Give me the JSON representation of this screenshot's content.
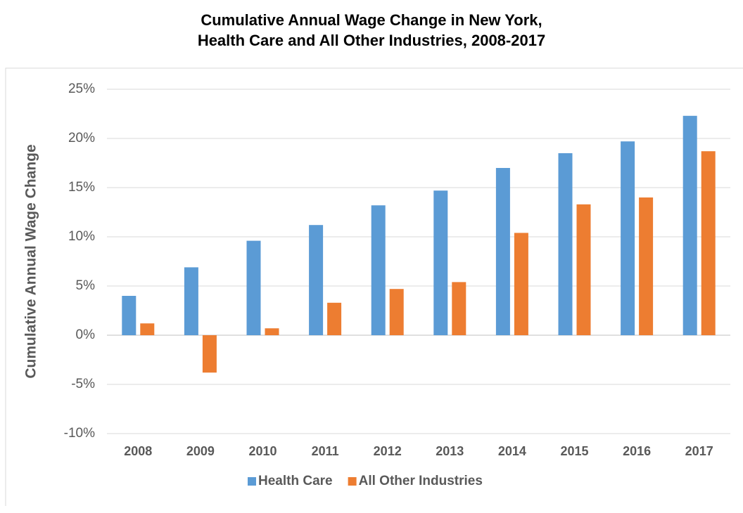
{
  "chart_data": {
    "type": "bar",
    "title": [
      "Cumulative Annual Wage Change in New York,",
      "Health Care and All Other Industries, 2008-2017"
    ],
    "y_label": "Cumulative Annual Wage Change",
    "categories": [
      "2008",
      "2009",
      "2010",
      "2011",
      "2012",
      "2013",
      "2014",
      "2015",
      "2016",
      "2017"
    ],
    "series": [
      {
        "name": "Health Care",
        "color": "#5b9bd5",
        "values": [
          4.0,
          6.9,
          9.6,
          11.2,
          13.2,
          14.7,
          17.0,
          18.5,
          19.7,
          22.3
        ]
      },
      {
        "name": "All Other Industries",
        "color": "#ed7d31",
        "values": [
          1.2,
          -3.8,
          0.7,
          3.3,
          4.7,
          5.4,
          10.4,
          13.3,
          14.0,
          18.7
        ]
      }
    ],
    "ylim": [
      -10,
      25
    ],
    "yticks": [
      {
        "value": -10,
        "label": "-10%"
      },
      {
        "value": -5,
        "label": "-5%"
      },
      {
        "value": 0,
        "label": "0%"
      },
      {
        "value": 5,
        "label": "5%"
      },
      {
        "value": 10,
        "label": "10%"
      },
      {
        "value": 15,
        "label": "15%"
      },
      {
        "value": 20,
        "label": "20%"
      },
      {
        "value": 25,
        "label": "25%"
      }
    ],
    "grid": true,
    "legend": "bottom"
  }
}
